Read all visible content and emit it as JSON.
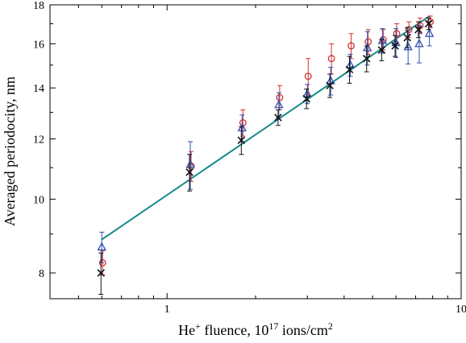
{
  "chart_data": {
    "type": "scatter",
    "xscale": "log",
    "yscale": "log",
    "xlim": [
      0.4,
      10
    ],
    "ylim": [
      7.4,
      18
    ],
    "x_ticks": [
      1,
      10
    ],
    "y_ticks": [
      8,
      10,
      12,
      14,
      16,
      18
    ],
    "xlabel": {
      "prefix": "He",
      "sup1": "+",
      "mid": " fluence, 10",
      "sup2": "17",
      "rest": " ions/cm",
      "sup3": "2"
    },
    "ylabel": "Averaged periodocity, nm",
    "grid": false,
    "legend": "none",
    "fit_line": {
      "x": [
        0.6,
        7.8
      ],
      "y": [
        8.85,
        17.4
      ],
      "color": "#1a8a8a"
    },
    "series": [
      {
        "marker": "circle",
        "color": "#d23030",
        "x": [
          0.6,
          1.2,
          1.8,
          2.4,
          3.0,
          3.6,
          4.2,
          4.8,
          5.4,
          6.0,
          6.6,
          7.2,
          7.8
        ],
        "y": [
          8.25,
          11.05,
          12.6,
          13.6,
          14.5,
          15.3,
          15.9,
          16.1,
          16.2,
          16.5,
          16.7,
          16.9,
          17.1
        ],
        "err": [
          0.3,
          0.5,
          0.5,
          0.5,
          0.8,
          0.7,
          0.6,
          0.6,
          0.5,
          0.5,
          0.4,
          0.4,
          0.3
        ]
      },
      {
        "marker": "triangle",
        "color": "#3050b0",
        "x": [
          0.6,
          1.2,
          1.8,
          2.4,
          3.0,
          3.6,
          4.2,
          4.8,
          5.4,
          6.0,
          6.6,
          7.2,
          7.8
        ],
        "y": [
          8.65,
          11.1,
          12.4,
          13.3,
          13.75,
          14.3,
          15.0,
          15.8,
          16.15,
          16.05,
          15.85,
          16.0,
          16.5
        ],
        "err": [
          0.4,
          0.8,
          0.5,
          0.5,
          0.4,
          0.6,
          0.5,
          0.8,
          0.6,
          0.7,
          0.8,
          0.9,
          0.6
        ]
      },
      {
        "marker": "cross",
        "color": "#111111",
        "x": [
          0.6,
          1.2,
          1.8,
          2.4,
          3.0,
          3.6,
          4.2,
          4.8,
          5.4,
          6.0,
          6.6,
          7.2,
          7.8
        ],
        "y": [
          8.0,
          10.85,
          11.95,
          12.8,
          13.55,
          14.1,
          14.8,
          15.3,
          15.7,
          15.9,
          16.3,
          16.7,
          17.0
        ],
        "err": [
          0.5,
          0.6,
          0.5,
          0.3,
          0.4,
          0.5,
          0.6,
          0.6,
          0.5,
          0.5,
          0.5,
          0.4,
          0.3
        ]
      }
    ]
  }
}
